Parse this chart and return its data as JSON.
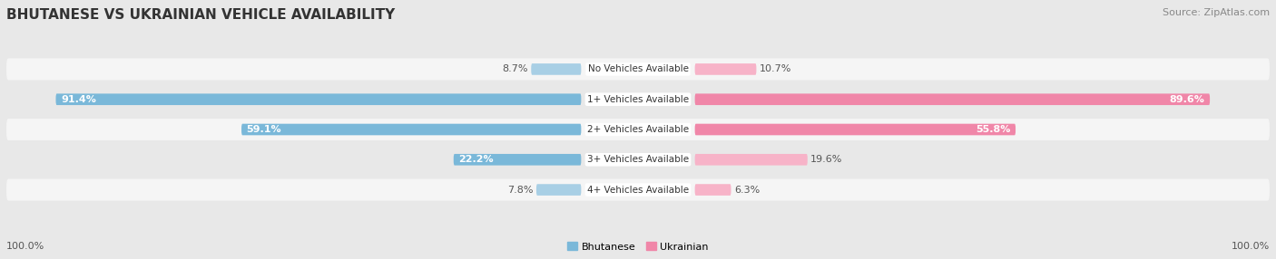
{
  "title": "BHUTANESE VS UKRAINIAN VEHICLE AVAILABILITY",
  "source": "Source: ZipAtlas.com",
  "categories": [
    "No Vehicles Available",
    "1+ Vehicles Available",
    "2+ Vehicles Available",
    "3+ Vehicles Available",
    "4+ Vehicles Available"
  ],
  "bhutanese_values": [
    8.7,
    91.4,
    59.1,
    22.2,
    7.8
  ],
  "ukrainian_values": [
    10.7,
    89.6,
    55.8,
    19.6,
    6.3
  ],
  "bhutanese_color": "#7ab8d9",
  "ukrainian_color": "#f086a8",
  "bhutanese_color_light": "#a8cfe5",
  "ukrainian_color_light": "#f7b3c8",
  "title_fontsize": 11,
  "source_fontsize": 8,
  "bar_label_fontsize": 8,
  "category_fontsize": 7.5,
  "legend_fontsize": 8,
  "footer_fontsize": 8,
  "bg_color": "#e8e8e8",
  "row_bg_odd": "#f5f5f5",
  "row_bg_even": "#e8e8e8",
  "label_threshold": 20
}
